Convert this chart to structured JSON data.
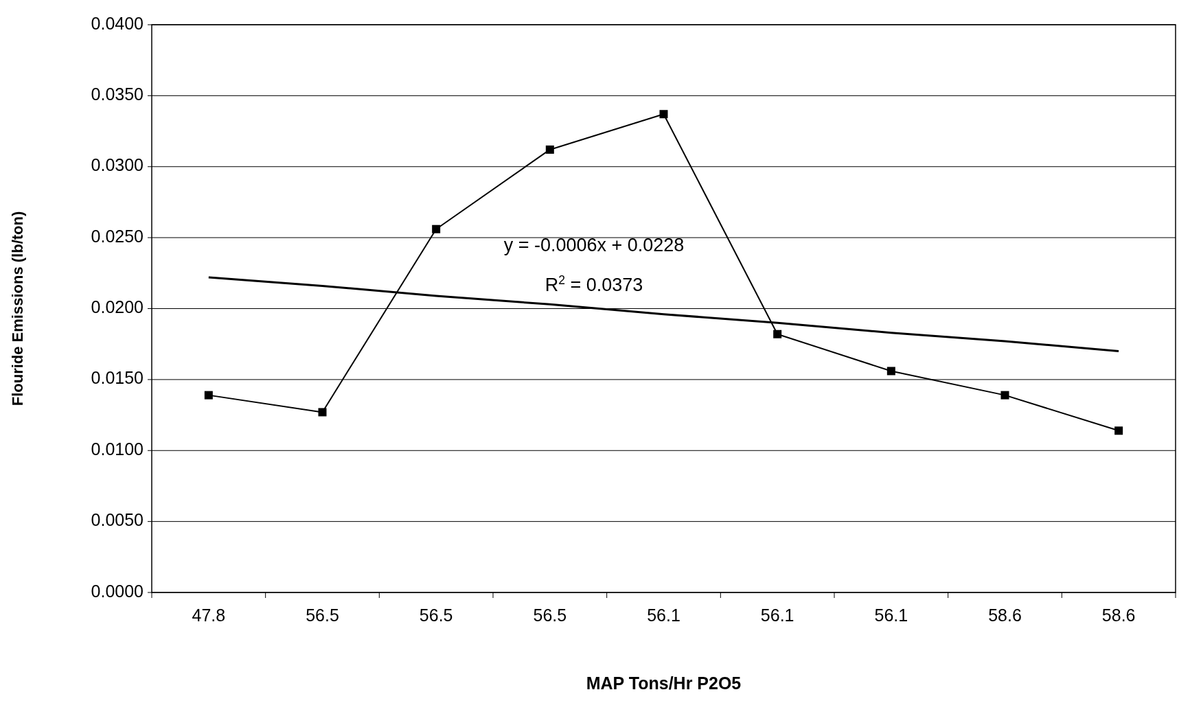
{
  "chart_data": {
    "type": "line",
    "xlabel": "MAP Tons/Hr P2O5",
    "ylabel": "Flouride Emissions (lb/ton)",
    "categories": [
      "47.8",
      "56.5",
      "56.5",
      "56.5",
      "56.1",
      "56.1",
      "56.1",
      "58.6",
      "58.6"
    ],
    "series": [
      {
        "color": "#000000",
        "marker": "square",
        "values": [
          0.0139,
          0.0127,
          0.0256,
          0.0312,
          0.0337,
          0.0182,
          0.0156,
          0.0139,
          0.0114
        ]
      },
      {
        "color": "#000000",
        "marker": "none",
        "values": [
          0.0222,
          0.0216,
          0.0209,
          0.0203,
          0.0196,
          0.019,
          0.0183,
          0.0177,
          0.017
        ]
      }
    ],
    "ylim": [
      0,
      0.04
    ],
    "yticks": [
      {
        "value": 0,
        "label": "0.0000"
      },
      {
        "value": 0.005,
        "label": "0.0050"
      },
      {
        "value": 0.01,
        "label": "0.0100"
      },
      {
        "value": 0.015,
        "label": "0.0150"
      },
      {
        "value": 0.02,
        "label": "0.0200"
      },
      {
        "value": 0.025,
        "label": "0.0250"
      },
      {
        "value": 0.03,
        "label": "0.0300"
      },
      {
        "value": 0.035,
        "label": "0.0350"
      },
      {
        "value": 0.04,
        "label": "0.0400"
      }
    ],
    "grid": "y",
    "annotations": [
      "y = -0.0006x + 0.0228",
      "R$^{2}$ = 0.0373"
    ]
  }
}
